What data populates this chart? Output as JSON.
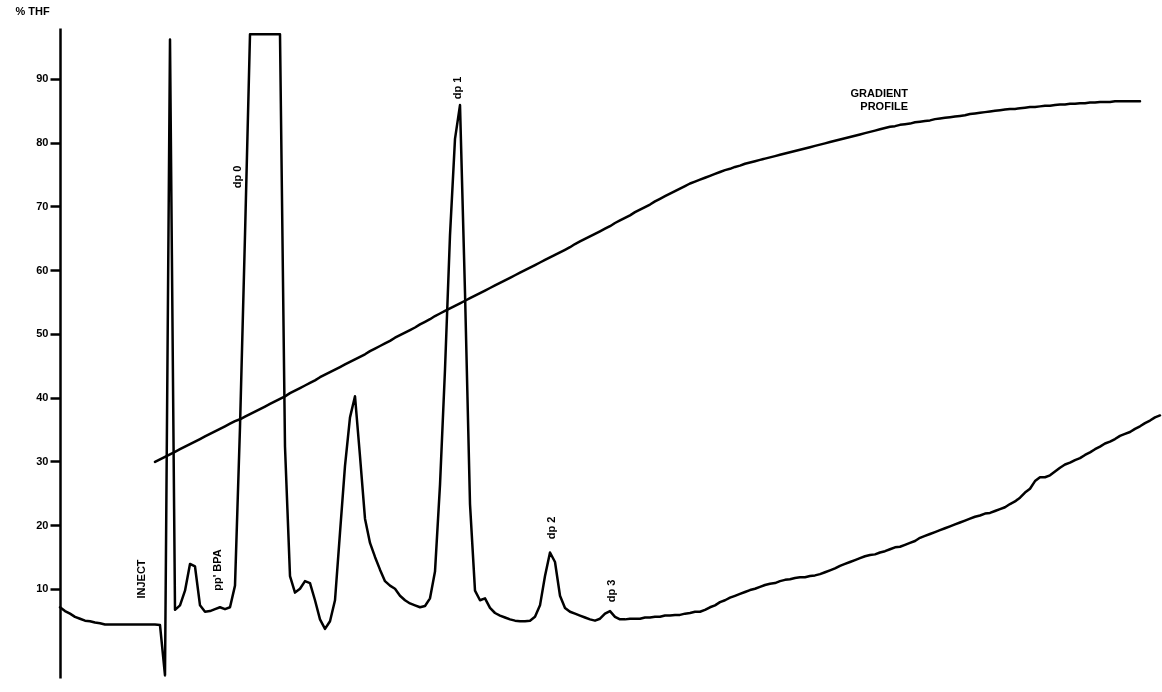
{
  "chart_data": {
    "type": "line",
    "ylabel": "% THF",
    "annotations": [
      "INJECT",
      "pp' BPA",
      "dp 0",
      "dp 1",
      "dp 2",
      "dp 3",
      "GRADIENT PROFILE"
    ],
    "categories": [
      null,
      null,
      null,
      null,
      null,
      null,
      null,
      null,
      null,
      null,
      null,
      null,
      null,
      null,
      null,
      null,
      null,
      null,
      null,
      null,
      null,
      null,
      null,
      null,
      null,
      null,
      null,
      null,
      null,
      null,
      null,
      null,
      null,
      null,
      null,
      null,
      null,
      null,
      null,
      null,
      null,
      null,
      null,
      null,
      null,
      null,
      null,
      null,
      null,
      null,
      null,
      null,
      null,
      null,
      null,
      null,
      null,
      null,
      null,
      null,
      null,
      null,
      null,
      null,
      null,
      null,
      null,
      null,
      null,
      null,
      null,
      null,
      null,
      null,
      null,
      null,
      null,
      null,
      null,
      null,
      null,
      null,
      null,
      null,
      null,
      null,
      null,
      null,
      null,
      null,
      null,
      null,
      null,
      null,
      null,
      null,
      null,
      null,
      null,
      null,
      null,
      null,
      null,
      null,
      null,
      null,
      null,
      null,
      null,
      null,
      null,
      null,
      null,
      null,
      null,
      null,
      null,
      null,
      null,
      null,
      null,
      null,
      null,
      null,
      null,
      null,
      null,
      null,
      null,
      null,
      null,
      null,
      null,
      null,
      null,
      null,
      null,
      null,
      null,
      null,
      null,
      null,
      null,
      null,
      null,
      null,
      null,
      null,
      null,
      null,
      null,
      null,
      null,
      null,
      null,
      null,
      null,
      null,
      null,
      null,
      null,
      null,
      null,
      null,
      null,
      null,
      null,
      null,
      null,
      null,
      null,
      null,
      null,
      null,
      null,
      null,
      null,
      null,
      null,
      null,
      null,
      null,
      null,
      null,
      null,
      null,
      null,
      null,
      null,
      null,
      null,
      null,
      null,
      null,
      null,
      null,
      null,
      null,
      null,
      null,
      null,
      null,
      null,
      null,
      null,
      null,
      null,
      null,
      null,
      null,
      null,
      null,
      null,
      null,
      null,
      null,
      null,
      null,
      null,
      null,
      null
    ],
    "series": [
      {
        "color": "#000000",
        "values": [
          7.1,
          6.5,
          6.1,
          5.6,
          5.3,
          5.0,
          4.9,
          4.7,
          4.6,
          4.4,
          4.4,
          4.4,
          4.4,
          4.4,
          4.4,
          4.4,
          4.4,
          4.4,
          4.4,
          4.4,
          4.3,
          -3.6,
          96.2,
          6.7,
          7.4,
          9.7,
          13.9,
          13.5,
          7.4,
          6.4,
          6.5,
          6.8,
          7.1,
          6.8,
          7.1,
          10.5,
          35.4,
          65.5,
          97.0,
          97.0,
          97.0,
          97.0,
          97.0,
          97.0,
          97.0,
          32.3,
          12.0,
          9.4,
          10.0,
          11.2,
          10.9,
          8.2,
          5.2,
          3.7,
          4.9,
          8.2,
          18.8,
          29.3,
          36.9,
          40.2,
          30.8,
          21.0,
          17.2,
          15.0,
          13.0,
          11.2,
          10.5,
          10.0,
          8.9,
          8.2,
          7.7,
          7.4,
          7.1,
          7.3,
          8.5,
          12.7,
          26.3,
          44.4,
          65.5,
          80.6,
          85.9,
          56.5,
          23.3,
          9.7,
          8.2,
          8.5,
          7.0,
          6.2,
          5.8,
          5.5,
          5.2,
          5.0,
          4.9,
          4.9,
          5.0,
          5.6,
          7.4,
          12.0,
          15.7,
          14.2,
          8.9,
          7.0,
          6.4,
          6.1,
          5.8,
          5.5,
          5.2,
          5.0,
          5.3,
          6.1,
          6.5,
          5.6,
          5.2,
          5.2,
          5.3,
          5.3,
          5.3,
          5.5,
          5.5,
          5.6,
          5.6,
          5.8,
          5.8,
          5.9,
          5.9,
          6.1,
          6.2,
          6.4,
          6.4,
          6.7,
          7.1,
          7.4,
          7.9,
          8.2,
          8.6,
          8.9,
          9.2,
          9.5,
          9.8,
          10.0,
          10.3,
          10.6,
          10.8,
          10.9,
          11.2,
          11.4,
          11.5,
          11.7,
          11.8,
          11.8,
          12.0,
          12.1,
          12.3,
          12.6,
          12.9,
          13.2,
          13.6,
          13.9,
          14.2,
          14.5,
          14.8,
          15.1,
          15.3,
          15.4,
          15.7,
          15.9,
          16.2,
          16.5,
          16.6,
          16.9,
          17.2,
          17.5,
          18.0,
          18.3,
          18.6,
          18.9,
          19.2,
          19.5,
          19.8,
          20.1,
          20.4,
          20.7,
          21.0,
          21.3,
          21.5,
          21.8,
          21.9,
          22.2,
          22.5,
          22.8,
          23.3,
          23.7,
          24.3,
          25.1,
          25.7,
          26.9,
          27.5,
          27.5,
          27.8,
          28.4,
          29.0,
          29.5,
          29.8,
          30.2,
          30.5,
          31.0,
          31.4,
          31.9,
          32.3,
          32.8,
          33.1,
          33.5,
          34.0,
          34.3,
          34.6,
          35.1,
          35.5,
          36.0,
          36.4,
          36.9,
          37.2
        ]
      },
      {
        "color": "#000000",
        "values": [
          null,
          null,
          null,
          null,
          null,
          null,
          null,
          null,
          null,
          null,
          null,
          null,
          null,
          null,
          null,
          null,
          null,
          null,
          null,
          29.9,
          30.3,
          30.7,
          31.1,
          31.5,
          31.9,
          32.3,
          32.7,
          33.1,
          33.5,
          33.9,
          34.3,
          34.7,
          35.1,
          35.5,
          35.9,
          36.3,
          36.6,
          37.0,
          37.4,
          37.8,
          38.2,
          38.6,
          39.0,
          39.4,
          39.8,
          40.2,
          40.7,
          41.1,
          41.5,
          41.9,
          42.3,
          42.7,
          43.2,
          43.6,
          44.0,
          44.4,
          44.8,
          45.2,
          45.6,
          46.0,
          46.4,
          46.8,
          47.3,
          47.7,
          48.1,
          48.5,
          48.9,
          49.4,
          49.8,
          50.2,
          50.6,
          51.0,
          51.5,
          51.9,
          52.3,
          52.8,
          53.2,
          53.6,
          54.0,
          54.4,
          54.8,
          55.2,
          55.6,
          56.0,
          56.4,
          56.8,
          57.2,
          57.6,
          58.0,
          58.4,
          58.8,
          59.2,
          59.6,
          60.0,
          60.4,
          60.8,
          61.2,
          61.6,
          62.0,
          62.4,
          62.8,
          63.2,
          63.6,
          64.1,
          64.5,
          64.9,
          65.3,
          65.7,
          66.1,
          66.5,
          66.9,
          67.4,
          67.8,
          68.2,
          68.6,
          69.1,
          69.5,
          69.9,
          70.3,
          70.8,
          71.2,
          71.6,
          72.0,
          72.4,
          72.8,
          73.2,
          73.6,
          73.9,
          74.2,
          74.5,
          74.8,
          75.1,
          75.4,
          75.7,
          75.9,
          76.2,
          76.4,
          76.7,
          76.9,
          77.1,
          77.3,
          77.5,
          77.7,
          77.9,
          78.1,
          78.3,
          78.5,
          78.7,
          78.9,
          79.1,
          79.3,
          79.5,
          79.7,
          79.9,
          80.1,
          80.3,
          80.5,
          80.7,
          80.9,
          81.1,
          81.3,
          81.5,
          81.7,
          81.9,
          82.1,
          82.3,
          82.5,
          82.6,
          82.8,
          82.9,
          83.0,
          83.2,
          83.3,
          83.4,
          83.5,
          83.7,
          83.8,
          83.9,
          84.0,
          84.1,
          84.2,
          84.3,
          84.5,
          84.6,
          84.7,
          84.8,
          84.9,
          85.0,
          85.1,
          85.2,
          85.3,
          85.3,
          85.4,
          85.5,
          85.6,
          85.6,
          85.7,
          85.8,
          85.8,
          85.9,
          86.0,
          86.0,
          86.1,
          86.1,
          86.2,
          86.2,
          86.3,
          86.3,
          86.4,
          86.4,
          86.4,
          86.5,
          86.5,
          86.5,
          86.5,
          86.5,
          86.5,
          null,
          null,
          null,
          null
        ]
      }
    ],
    "ylim": [
      -4,
      98
    ],
    "yticks": [
      10,
      20,
      30,
      40,
      50,
      60,
      70,
      80,
      90
    ],
    "tick_labels": "y"
  }
}
